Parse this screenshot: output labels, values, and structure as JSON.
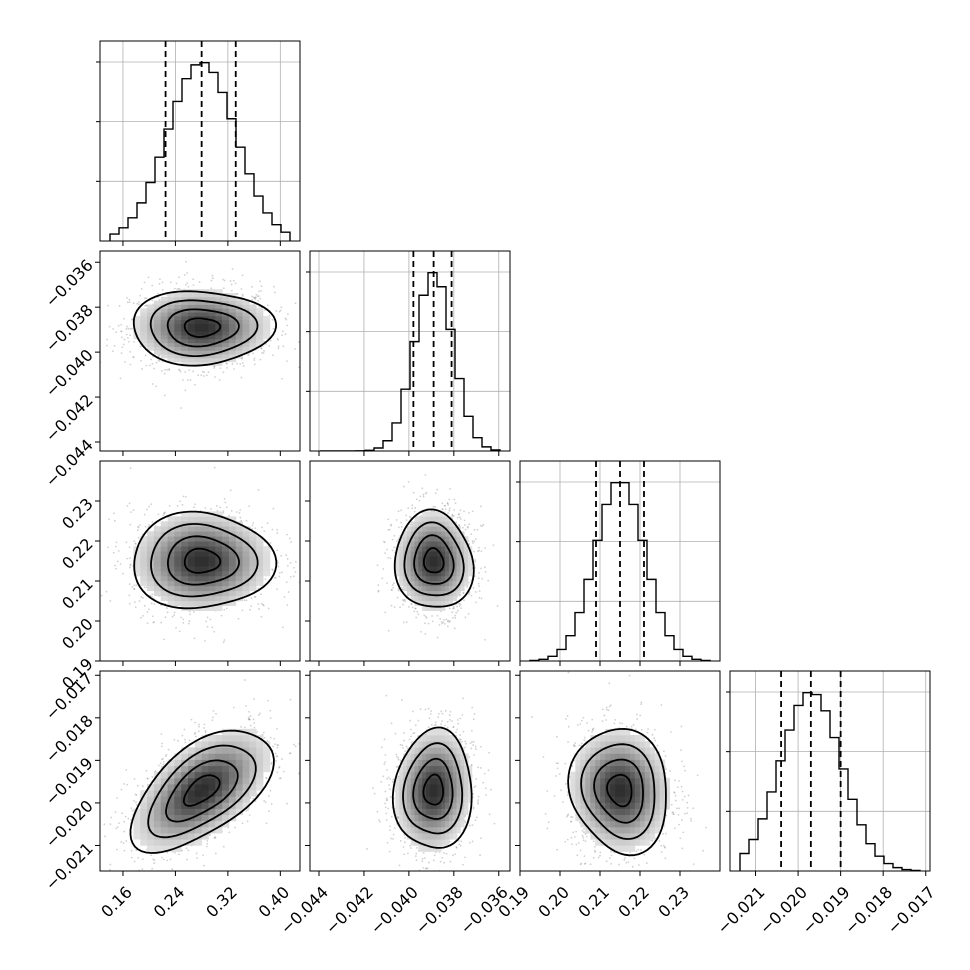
{
  "chart_data": {
    "type": "corner",
    "parameters": [
      {
        "center": 0.28,
        "quantiles": [
          0.225,
          0.28,
          0.332
        ],
        "range": [
          0.125,
          0.43
        ],
        "ticks": [
          "0.16",
          "0.24",
          "0.32",
          "0.40"
        ],
        "tick_values": [
          0.16,
          0.24,
          0.32,
          0.4
        ],
        "sigma": 0.052,
        "hist_ticks": 3
      },
      {
        "center": -0.0389,
        "quantiles": [
          -0.0398,
          -0.0389,
          -0.0381
        ],
        "range": [
          -0.0444,
          -0.0355
        ],
        "ticks": [
          "−0.044",
          "−0.042",
          "−0.040",
          "−0.038",
          "−0.036"
        ],
        "tick_values": [
          -0.044,
          -0.042,
          -0.04,
          -0.038,
          -0.036
        ],
        "sigma": 0.00085,
        "hist_ticks": 3
      },
      {
        "center": 0.215,
        "quantiles": [
          0.209,
          0.215,
          0.221
        ],
        "range": [
          0.19,
          0.24
        ],
        "ticks": [
          "0.19",
          "0.20",
          "0.21",
          "0.22",
          "0.23"
        ],
        "tick_values": [
          0.19,
          0.2,
          0.21,
          0.22,
          0.23
        ],
        "sigma": 0.0062,
        "hist_ticks": 3
      },
      {
        "center": -0.0197,
        "quantiles": [
          -0.0204,
          -0.0197,
          -0.019
        ],
        "range": [
          -0.0216,
          -0.0169
        ],
        "ticks": [
          "−0.021",
          "−0.020",
          "−0.019",
          "−0.018",
          "−0.017"
        ],
        "tick_values": [
          -0.021,
          -0.02,
          -0.019,
          -0.018,
          -0.017
        ],
        "sigma": 0.00072,
        "hist_ticks": 3
      }
    ],
    "correlations": [
      [
        1,
        0,
        0,
        0.55
      ],
      [
        0,
        1,
        0,
        0.1
      ],
      [
        0,
        0,
        1,
        -0.05
      ],
      [
        0.55,
        0.1,
        -0.05,
        1
      ]
    ],
    "histogram": {
      "style": "step",
      "bins": 20,
      "grid": true
    },
    "density": {
      "contour_levels": 4,
      "points": true,
      "colormap": "greys"
    },
    "xlabel": "",
    "ylabel": "",
    "title": ""
  }
}
